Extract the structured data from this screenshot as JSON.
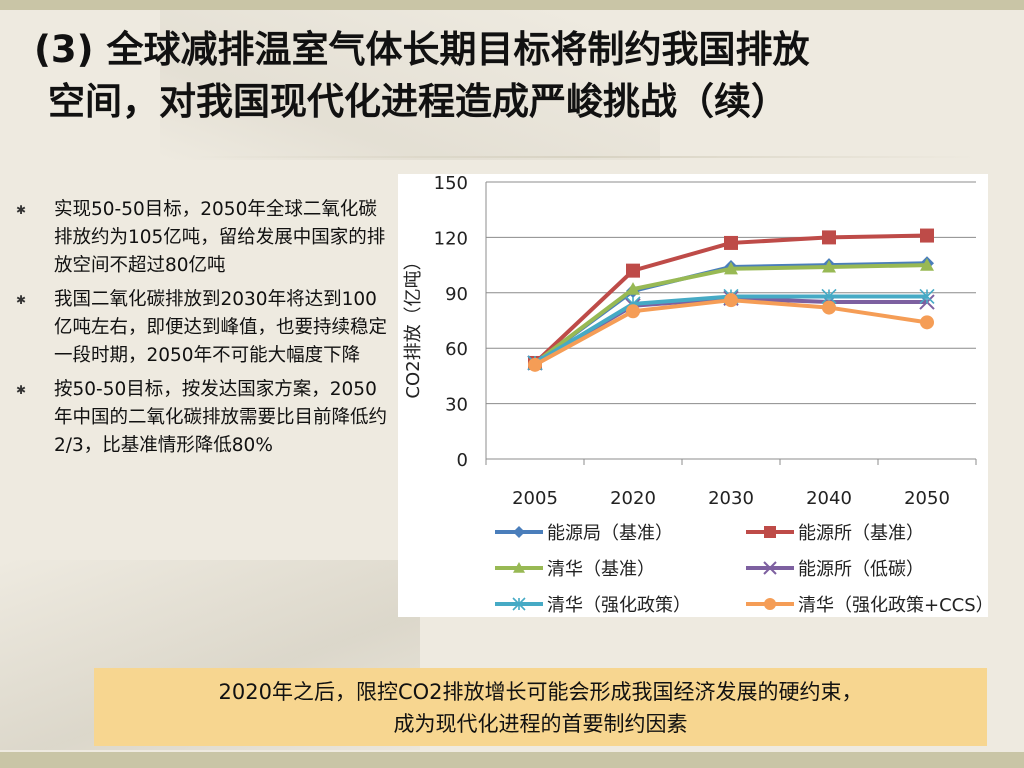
{
  "slide": {
    "title_line1": "(3)  全球减排温室气体长期目标将制约我国排放",
    "title_line2": "空间，对我国现代化进程造成严峻挑战（续）",
    "bullets": [
      "实现50-50目标，2050年全球二氧化碳排放约为105亿吨，留给发展中国家的排放空间不超过80亿吨",
      "我国二氧化碳排放到2030年将达到100亿吨左右，即便达到峰值，也要持续稳定一段时期，2050年不可能大幅度下降",
      "按50-50目标，按发达国家方案，2050年中国的二氧化碳排放需要比目前降低约2/3，比基准情形降低80%"
    ],
    "conclusion_line1": "2020年之后，限控CO2排放增长可能会形成我国经济发展的硬约束，",
    "conclusion_line2": "成为现代化进程的首要制约因素"
  },
  "chart_data": {
    "type": "line",
    "categories": [
      "2005",
      "2020",
      "2030",
      "2040",
      "2050"
    ],
    "ylabel": "CO2排放（亿吨）",
    "ylim": [
      0,
      150
    ],
    "yticks": [
      "0",
      "30",
      "60",
      "90",
      "120",
      "150"
    ],
    "grid": true,
    "legend_position": "bottom",
    "series": [
      {
        "name": "能源局（基准）",
        "values": [
          52,
          91,
          104,
          105,
          106
        ],
        "color": "#4a7ebb",
        "marker": "diamond"
      },
      {
        "name": "能源所（基准）",
        "values": [
          52,
          102,
          117,
          120,
          121
        ],
        "color": "#be4b48",
        "marker": "square"
      },
      {
        "name": "清华（基准）",
        "values": [
          52,
          92,
          103,
          104,
          105
        ],
        "color": "#98b954",
        "marker": "triangle"
      },
      {
        "name": "能源所（低碳）",
        "values": [
          52,
          83,
          87,
          85,
          85
        ],
        "color": "#7d60a0",
        "marker": "x"
      },
      {
        "name": "清华（强化政策）",
        "values": [
          52,
          84,
          88,
          88,
          88
        ],
        "color": "#46aac5",
        "marker": "star"
      },
      {
        "name": "清华（强化政策+CCS）",
        "values": [
          51,
          80,
          86,
          82,
          74
        ],
        "color": "#f59d56",
        "marker": "circle"
      }
    ]
  }
}
